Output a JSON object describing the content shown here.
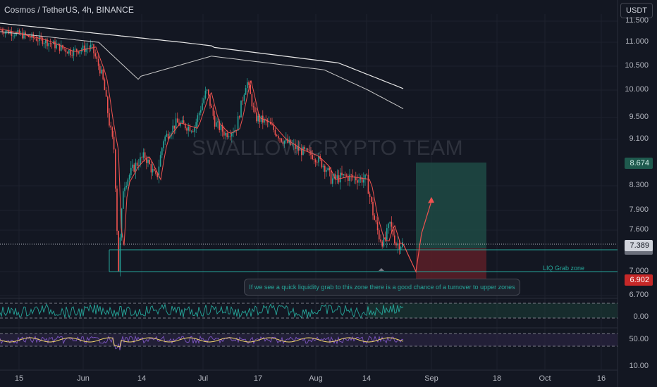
{
  "header": {
    "title": "Cosmos / TetherUS, 4h, BINANCE",
    "currency": "USDT",
    "watermark": "SWALLOW CRYPTO TEAM"
  },
  "price_axis": {
    "ticks": [
      "11.500",
      "11.000",
      "10.500",
      "10.000",
      "9.500",
      "9.100",
      "8.300",
      "7.900",
      "7.600",
      "7.000",
      "6.700"
    ]
  },
  "price_tags": {
    "target": "8.674",
    "current": "7.389",
    "hidden_partial": "7.310",
    "stop": "6.902"
  },
  "rsi_axis": {
    "ticks": [
      "0.00"
    ]
  },
  "osc_axis": {
    "ticks": [
      "50.00",
      "10.00"
    ]
  },
  "time_axis": {
    "ticks": [
      "15",
      "Jun",
      "14",
      "Jul",
      "17",
      "Aug",
      "14",
      "Sep",
      "18",
      "Oct",
      "16"
    ]
  },
  "annotations": {
    "zone_label": "LIQ Grab zone",
    "note": "If we see a quick liquidity grab to this zone there is a good chance of a turnover to upper zones"
  },
  "colors": {
    "background": "#131722",
    "up": "#26a69a",
    "down": "#ef5350",
    "target_zone": "#1f4a44",
    "stop_zone": "#5c1f27",
    "ma_white": "#e8e8e8",
    "ma_grey": "#c9c9c9",
    "signal_red": "#ef5350",
    "rsi_line": "#26a69a",
    "osc_purple": "#7e57c2",
    "osc_yellow": "#f5d76e"
  },
  "chart_data": {
    "type": "candlestick",
    "symbol": "Cosmos / TetherUS",
    "interval": "4h",
    "exchange": "BINANCE",
    "x_ticks": [
      "15",
      "Jun",
      "14",
      "Jul",
      "17",
      "Aug",
      "14",
      "Sep",
      "18",
      "Oct",
      "16"
    ],
    "ylim": [
      6.6,
      11.6
    ],
    "price_path_keypoints": [
      {
        "x": "15",
        "y": 11.3
      },
      {
        "x": "Jun",
        "y": 10.8
      },
      {
        "x": "Jun",
        "y": 9.4
      },
      {
        "x": "Jun",
        "y": 7.0
      },
      {
        "x": "14",
        "y": 8.6
      },
      {
        "x": "14",
        "y": 9.2
      },
      {
        "x": "Jul",
        "y": 10.0
      },
      {
        "x": "Jul",
        "y": 9.3
      },
      {
        "x": "17",
        "y": 10.2
      },
      {
        "x": "17",
        "y": 9.3
      },
      {
        "x": "Aug",
        "y": 8.7
      },
      {
        "x": "Aug",
        "y": 8.3
      },
      {
        "x": "14",
        "y": 7.5
      },
      {
        "x": "14",
        "y": 7.39
      }
    ],
    "levels": {
      "target": 8.674,
      "current": 7.389,
      "support": 7.31,
      "liq_grab": 7.0,
      "stop": 6.902
    },
    "projection": [
      {
        "x": "Sep",
        "y": 7.0
      },
      {
        "x": "Sep",
        "y": 7.5
      },
      {
        "x": "Sep",
        "y": 8.1
      }
    ],
    "oscillator_1": {
      "axis_ticks": [
        "0.00"
      ]
    },
    "oscillator_2": {
      "axis_ticks": [
        "50.00",
        "10.00"
      ]
    }
  }
}
